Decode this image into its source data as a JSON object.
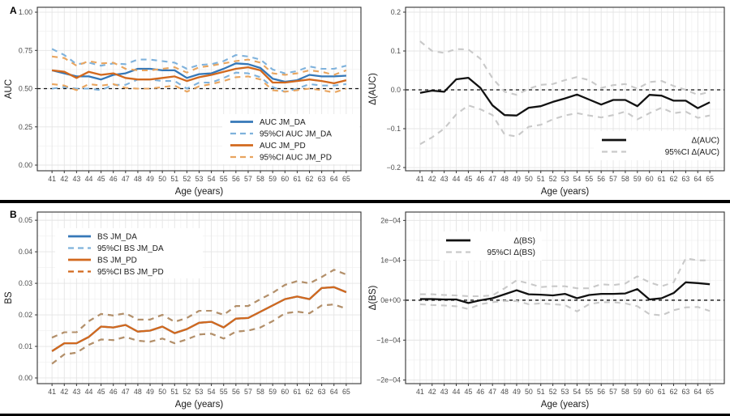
{
  "figure": {
    "panel_tags": [
      "A",
      "B"
    ],
    "colors": {
      "jm_da": "#3678B8",
      "jm_da_ci": "#7FB2DC",
      "jm_pd": "#D2691E",
      "jm_pd_ci_light": "#E9A55F",
      "jm_pd_ci_brown": "#B3906B",
      "delta_line": "#111111",
      "delta_ci": "#C9C9C9",
      "grid_major": "#E4E4E4",
      "grid_minor": "#F2F2F2",
      "axis_text": "#4D4D4D",
      "panel_border": "#333333"
    }
  },
  "chart_data": [
    {
      "type": "line",
      "tag": "A",
      "xlabel": "Age (years)",
      "ylabel": "AUC",
      "x": [
        41,
        42,
        43,
        44,
        45,
        46,
        47,
        48,
        49,
        50,
        51,
        52,
        53,
        54,
        55,
        56,
        57,
        58,
        59,
        60,
        61,
        62,
        63,
        64,
        65
      ],
      "xlim": [
        39.8,
        66.2
      ],
      "ylim": [
        -0.037,
        1.032
      ],
      "yticks": {
        "values": [
          0,
          0.25,
          0.5,
          0.75,
          1
        ],
        "labels": [
          "0.00",
          "0.25",
          "0.50",
          "0.75",
          "1.00"
        ]
      },
      "ref_line": 0.5,
      "grid": true,
      "legend": {
        "position": "bottom-right",
        "align": "left",
        "items": [
          {
            "label": "AUC JM_DA",
            "color": "#3678B8",
            "dash": false
          },
          {
            "label": "95%CI AUC JM_DA",
            "color": "#7FB2DC",
            "dash": true
          },
          {
            "label": "AUC JM_PD",
            "color": "#D2691E",
            "dash": false
          },
          {
            "label": "95%CI AUC JM_PD",
            "color": "#E9A55F",
            "dash": true
          }
        ]
      },
      "series": [
        {
          "name": "95%CI AUC JM_DA lower",
          "color": "#7FB2DC",
          "dash": true,
          "values": [
            0.5,
            0.51,
            0.5,
            0.5,
            0.49,
            0.525,
            0.525,
            0.56,
            0.56,
            0.55,
            0.55,
            0.5,
            0.54,
            0.54,
            0.57,
            0.605,
            0.6,
            0.575,
            0.51,
            0.48,
            0.5,
            0.53,
            0.52,
            0.52,
            0.53
          ]
        },
        {
          "name": "95%CI AUC JM_DA upper",
          "color": "#7FB2DC",
          "dash": true,
          "values": [
            0.76,
            0.72,
            0.66,
            0.67,
            0.65,
            0.665,
            0.66,
            0.69,
            0.69,
            0.68,
            0.67,
            0.63,
            0.655,
            0.66,
            0.68,
            0.72,
            0.71,
            0.69,
            0.625,
            0.6,
            0.615,
            0.645,
            0.63,
            0.63,
            0.65
          ]
        },
        {
          "name": "AUC JM_DA",
          "color": "#3678B8",
          "dash": false,
          "values": [
            0.62,
            0.6,
            0.58,
            0.58,
            0.56,
            0.59,
            0.6,
            0.63,
            0.63,
            0.62,
            0.62,
            0.57,
            0.595,
            0.6,
            0.63,
            0.665,
            0.66,
            0.635,
            0.565,
            0.545,
            0.555,
            0.59,
            0.58,
            0.58,
            0.585
          ]
        },
        {
          "name": "95%CI AUC JM_PD lower",
          "color": "#E9A55F",
          "dash": true,
          "values": [
            0.53,
            0.52,
            0.49,
            0.53,
            0.52,
            0.53,
            0.505,
            0.5,
            0.5,
            0.51,
            0.52,
            0.48,
            0.515,
            0.53,
            0.55,
            0.575,
            0.58,
            0.56,
            0.49,
            0.48,
            0.49,
            0.5,
            0.49,
            0.475,
            0.5
          ]
        },
        {
          "name": "95%CI AUC JM_PD upper",
          "color": "#E9A55F",
          "dash": true,
          "values": [
            0.71,
            0.7,
            0.65,
            0.68,
            0.665,
            0.67,
            0.63,
            0.62,
            0.62,
            0.63,
            0.64,
            0.605,
            0.64,
            0.65,
            0.665,
            0.68,
            0.69,
            0.67,
            0.6,
            0.59,
            0.6,
            0.62,
            0.61,
            0.59,
            0.62
          ]
        },
        {
          "name": "AUC JM_PD",
          "color": "#D2691E",
          "dash": false,
          "values": [
            0.62,
            0.61,
            0.57,
            0.61,
            0.59,
            0.6,
            0.57,
            0.56,
            0.56,
            0.57,
            0.58,
            0.55,
            0.575,
            0.59,
            0.61,
            0.63,
            0.64,
            0.62,
            0.54,
            0.54,
            0.55,
            0.56,
            0.55,
            0.535,
            0.555
          ]
        }
      ]
    },
    {
      "type": "line",
      "tag": null,
      "xlabel": "Age (years)",
      "ylabel": "Δ(AUC)",
      "x": [
        41,
        42,
        43,
        44,
        45,
        46,
        47,
        48,
        49,
        50,
        51,
        52,
        53,
        54,
        55,
        56,
        57,
        58,
        59,
        60,
        61,
        62,
        63,
        64,
        65
      ],
      "xlim": [
        39.8,
        66.2
      ],
      "ylim": [
        -0.2083,
        0.2125
      ],
      "yticks": {
        "values": [
          -0.2,
          -0.1,
          0,
          0.1,
          0.2
        ],
        "labels": [
          "−0.2",
          "−0.1",
          "0.0",
          "0.1",
          "0.2"
        ]
      },
      "ref_line": 0,
      "grid": true,
      "legend": {
        "position": "bottom-right",
        "align": "right",
        "items": [
          {
            "label": "Δ(AUC)",
            "color": "#111111",
            "dash": false
          },
          {
            "label": "95%CI Δ(AUC)",
            "color": "#C9C9C9",
            "dash": true
          }
        ]
      },
      "series": [
        {
          "name": "95%CI Δ(AUC) lower",
          "color": "#C9C9C9",
          "dash": true,
          "values": [
            -0.14,
            -0.122,
            -0.1,
            -0.063,
            -0.04,
            -0.05,
            -0.065,
            -0.115,
            -0.12,
            -0.095,
            -0.09,
            -0.076,
            -0.066,
            -0.06,
            -0.066,
            -0.071,
            -0.065,
            -0.056,
            -0.076,
            -0.06,
            -0.046,
            -0.06,
            -0.056,
            -0.072,
            -0.066
          ]
        },
        {
          "name": "95%CI Δ(AUC) upper",
          "color": "#C9C9C9",
          "dash": true,
          "values": [
            0.125,
            0.1,
            0.095,
            0.105,
            0.104,
            0.08,
            0.03,
            -0.005,
            -0.013,
            0.003,
            0.013,
            0.015,
            0.025,
            0.033,
            0.025,
            0.005,
            0.012,
            0.015,
            0.003,
            0.02,
            0.023,
            0.01,
            0.0,
            -0.013,
            -0.005
          ]
        },
        {
          "name": "Δ(AUC)",
          "color": "#111111",
          "dash": false,
          "values": [
            -0.008,
            -0.002,
            -0.005,
            0.027,
            0.031,
            0.005,
            -0.04,
            -0.065,
            -0.066,
            -0.046,
            -0.042,
            -0.031,
            -0.022,
            -0.012,
            -0.025,
            -0.038,
            -0.026,
            -0.026,
            -0.042,
            -0.013,
            -0.015,
            -0.028,
            -0.028,
            -0.047,
            -0.032
          ]
        }
      ]
    },
    {
      "type": "line",
      "tag": "B",
      "xlabel": "Age (years)",
      "ylabel": "BS",
      "x": [
        41,
        42,
        43,
        44,
        45,
        46,
        47,
        48,
        49,
        50,
        51,
        52,
        53,
        54,
        55,
        56,
        57,
        58,
        59,
        60,
        61,
        62,
        63,
        64,
        65
      ],
      "xlim": [
        39.8,
        66.2
      ],
      "ylim": [
        -0.0018,
        0.0526
      ],
      "yticks": {
        "values": [
          0,
          0.01,
          0.02,
          0.03,
          0.04,
          0.05
        ],
        "labels": [
          "0.00",
          "0.01",
          "0.02",
          "0.03",
          "0.04",
          "0.05"
        ]
      },
      "ref_line": null,
      "grid": true,
      "legend": {
        "position": "top-left",
        "align": "left",
        "items": [
          {
            "label": "BS JM_DA",
            "color": "#3678B8",
            "dash": false
          },
          {
            "label": "95%CI BS JM_DA",
            "color": "#7FB2DC",
            "dash": true
          },
          {
            "label": "BS JM_PD",
            "color": "#D2691E",
            "dash": false
          },
          {
            "label": "95%CI BS JM_PD",
            "color": "#D2691E",
            "dash": true
          }
        ]
      },
      "series": [
        {
          "name": "BS JM_DA",
          "color": "#3678B8",
          "dash": false,
          "values": [
            0.0085,
            0.011,
            0.011,
            0.013,
            0.0163,
            0.016,
            0.0168,
            0.0147,
            0.015,
            0.0163,
            0.0142,
            0.0155,
            0.0175,
            0.0178,
            0.016,
            0.0188,
            0.019,
            0.021,
            0.023,
            0.025,
            0.0258,
            0.025,
            0.0285,
            0.0288,
            0.0272
          ]
        },
        {
          "name": "95%CI BS JM_DA lower",
          "color": "#B3906B",
          "dash": true,
          "values": [
            0.0045,
            0.0075,
            0.008,
            0.0105,
            0.0122,
            0.012,
            0.013,
            0.0118,
            0.0115,
            0.0125,
            0.011,
            0.0122,
            0.0138,
            0.014,
            0.0125,
            0.0147,
            0.015,
            0.016,
            0.018,
            0.0205,
            0.021,
            0.0205,
            0.023,
            0.0233,
            0.022
          ]
        },
        {
          "name": "95%CI BS JM_DA upper",
          "color": "#B3906B",
          "dash": true,
          "values": [
            0.0128,
            0.0145,
            0.0145,
            0.018,
            0.0203,
            0.0198,
            0.0205,
            0.0185,
            0.0185,
            0.02,
            0.0178,
            0.019,
            0.0213,
            0.0213,
            0.02,
            0.0228,
            0.0228,
            0.025,
            0.027,
            0.0295,
            0.0307,
            0.03,
            0.032,
            0.0343,
            0.0328
          ]
        },
        {
          "name": "95%CI BS JM_PD lower",
          "color": "#B3906B",
          "dash": true,
          "values": [
            0.0045,
            0.0075,
            0.008,
            0.0105,
            0.0122,
            0.012,
            0.013,
            0.0118,
            0.0115,
            0.0125,
            0.011,
            0.0122,
            0.0138,
            0.014,
            0.0125,
            0.0147,
            0.015,
            0.016,
            0.018,
            0.0205,
            0.021,
            0.0205,
            0.023,
            0.0233,
            0.022
          ]
        },
        {
          "name": "95%CI BS JM_PD upper",
          "color": "#B3906B",
          "dash": true,
          "values": [
            0.0128,
            0.0145,
            0.0145,
            0.018,
            0.0203,
            0.0198,
            0.0205,
            0.0185,
            0.0185,
            0.02,
            0.0178,
            0.019,
            0.0213,
            0.0213,
            0.02,
            0.0228,
            0.0228,
            0.025,
            0.027,
            0.0295,
            0.0307,
            0.03,
            0.032,
            0.0343,
            0.0328
          ]
        },
        {
          "name": "BS JM_PD",
          "color": "#D2691E",
          "dash": false,
          "values": [
            0.0085,
            0.011,
            0.011,
            0.013,
            0.0163,
            0.016,
            0.0168,
            0.0147,
            0.015,
            0.0163,
            0.0142,
            0.0155,
            0.0175,
            0.0178,
            0.016,
            0.0188,
            0.019,
            0.021,
            0.023,
            0.025,
            0.0258,
            0.025,
            0.0285,
            0.0288,
            0.0272
          ]
        }
      ]
    },
    {
      "type": "line",
      "tag": null,
      "xlabel": "Age (years)",
      "ylabel": "Δ(BS)",
      "x": [
        41,
        42,
        43,
        44,
        45,
        46,
        47,
        48,
        49,
        50,
        51,
        52,
        53,
        54,
        55,
        56,
        57,
        58,
        59,
        60,
        61,
        62,
        63,
        64,
        65
      ],
      "xlim": [
        39.8,
        66.2
      ],
      "ylim": [
        -0.000209,
        0.000221
      ],
      "yticks": {
        "values": [
          -0.0002,
          -0.0001,
          0,
          0.0001,
          0.0002
        ],
        "labels": [
          "−2e−04",
          "−1e−04",
          "0e+00",
          "1e−04",
          "2e−04"
        ]
      },
      "ref_line": 0,
      "grid": true,
      "legend": {
        "position": "top-left",
        "align": "right",
        "items": [
          {
            "label": "Δ(BS)",
            "color": "#111111",
            "dash": false
          },
          {
            "label": "95%CI Δ(BS)",
            "color": "#C9C9C9",
            "dash": true
          }
        ]
      },
      "series": [
        {
          "name": "95%CI Δ(BS) lower",
          "color": "#C9C9C9",
          "dash": true,
          "values": [
            -1e-05,
            -1.2e-05,
            -1.3e-05,
            -1.5e-05,
            -2.2e-05,
            -1e-05,
            -5e-06,
            -2e-06,
            -2e-06,
            -1e-05,
            -8e-06,
            -1e-05,
            -1.2e-05,
            -2.8e-05,
            -1e-05,
            -5e-06,
            -5e-06,
            -8e-06,
            -1.5e-05,
            -3.5e-05,
            -3.8e-05,
            -2.5e-05,
            -1.8e-05,
            -1.7e-05,
            -2.7e-05
          ]
        },
        {
          "name": "95%CI Δ(BS) upper",
          "color": "#C9C9C9",
          "dash": true,
          "values": [
            1.5e-05,
            1.5e-05,
            1.3e-05,
            1.2e-05,
            1e-05,
            1e-05,
            1.2e-05,
            3e-05,
            5e-05,
            4.2e-05,
            3.3e-05,
            3.5e-05,
            3.5e-05,
            3e-05,
            3e-05,
            4e-05,
            3.8e-05,
            4.2e-05,
            6e-05,
            4.5e-05,
            3.5e-05,
            4.5e-05,
            0.000105,
            0.0001,
            0.0001
          ]
        },
        {
          "name": "Δ(BS)",
          "color": "#111111",
          "dash": false,
          "values": [
            3e-06,
            3e-06,
            2e-06,
            2e-06,
            -7e-06,
            0,
            5e-06,
            1.5e-05,
            2.5e-05,
            1.5e-05,
            1.4e-05,
            1.2e-05,
            1.6e-05,
            5e-06,
            1.3e-05,
            1.6e-05,
            1.6e-05,
            1.7e-05,
            2.8e-05,
            2e-06,
            5e-06,
            1.8e-05,
            4.5e-05,
            4.3e-05,
            4e-05
          ]
        }
      ]
    }
  ]
}
